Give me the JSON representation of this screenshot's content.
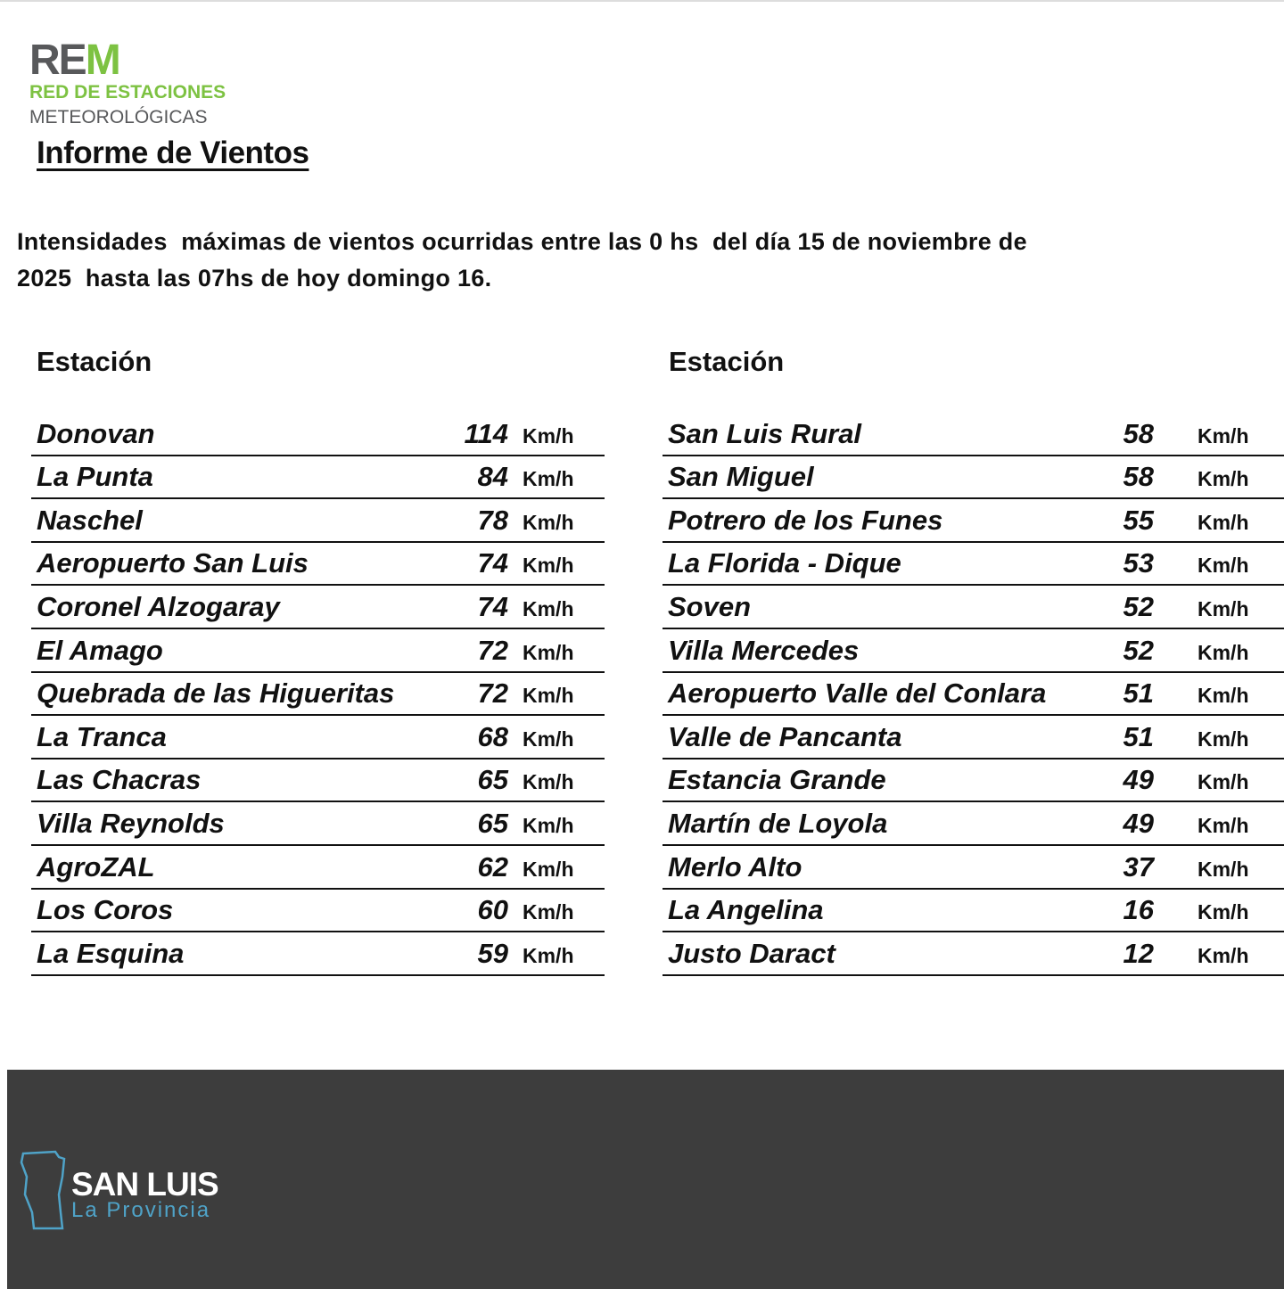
{
  "logo": {
    "mark": [
      "RE",
      "M"
    ],
    "line1": "RED DE ESTACIONES",
    "line2": "METEOROLÓGICAS"
  },
  "title": "Informe de Vientos",
  "intro": [
    "Intensidades  máximas de vientos ocurridas entre las 0 hs  del día 15 de noviembre de",
    "2025  hasta las 07hs de hoy domingo 16."
  ],
  "tables": [
    {
      "header": "Estación",
      "rows": [
        [
          "Donovan",
          "114",
          "Km/h"
        ],
        [
          "La Punta",
          "84",
          "Km/h"
        ],
        [
          "Naschel",
          "78",
          "Km/h"
        ],
        [
          "Aeropuerto San Luis",
          "74",
          "Km/h"
        ],
        [
          "Coronel Alzogaray",
          "74",
          "Km/h"
        ],
        [
          "El Amago",
          "72",
          "Km/h"
        ],
        [
          "Quebrada de las Higueritas",
          "72",
          "Km/h"
        ],
        [
          "La Tranca",
          "68",
          "Km/h"
        ],
        [
          "Las Chacras",
          "65",
          "Km/h"
        ],
        [
          "Villa Reynolds",
          "65",
          "Km/h"
        ],
        [
          "AgroZAL",
          "62",
          "Km/h"
        ],
        [
          "Los Coros",
          "60",
          "Km/h"
        ],
        [
          "La Esquina",
          "59",
          "Km/h"
        ]
      ]
    },
    {
      "header": "Estación",
      "rows": [
        [
          "San Luis Rural",
          "58",
          "Km/h"
        ],
        [
          "San Miguel",
          "58",
          "Km/h"
        ],
        [
          "Potrero de los Funes",
          "55",
          "Km/h"
        ],
        [
          "La Florida - Dique",
          "53",
          "Km/h"
        ],
        [
          "Soven",
          "52",
          "Km/h"
        ],
        [
          "Villa Mercedes",
          "52",
          "Km/h"
        ],
        [
          "Aeropuerto Valle del Conlara",
          "51",
          "Km/h"
        ],
        [
          "Valle de Pancanta",
          "51",
          "Km/h"
        ],
        [
          "Estancia Grande",
          "49",
          "Km/h"
        ],
        [
          "Martín de Loyola",
          "49",
          "Km/h"
        ],
        [
          "Merlo Alto",
          "37",
          "Km/h"
        ],
        [
          "La Angelina",
          "16",
          "Km/h"
        ],
        [
          "Justo Daract",
          "12",
          "Km/h"
        ]
      ]
    }
  ],
  "footer": {
    "name": "SAN LUIS",
    "tagline": "La Provincia"
  }
}
